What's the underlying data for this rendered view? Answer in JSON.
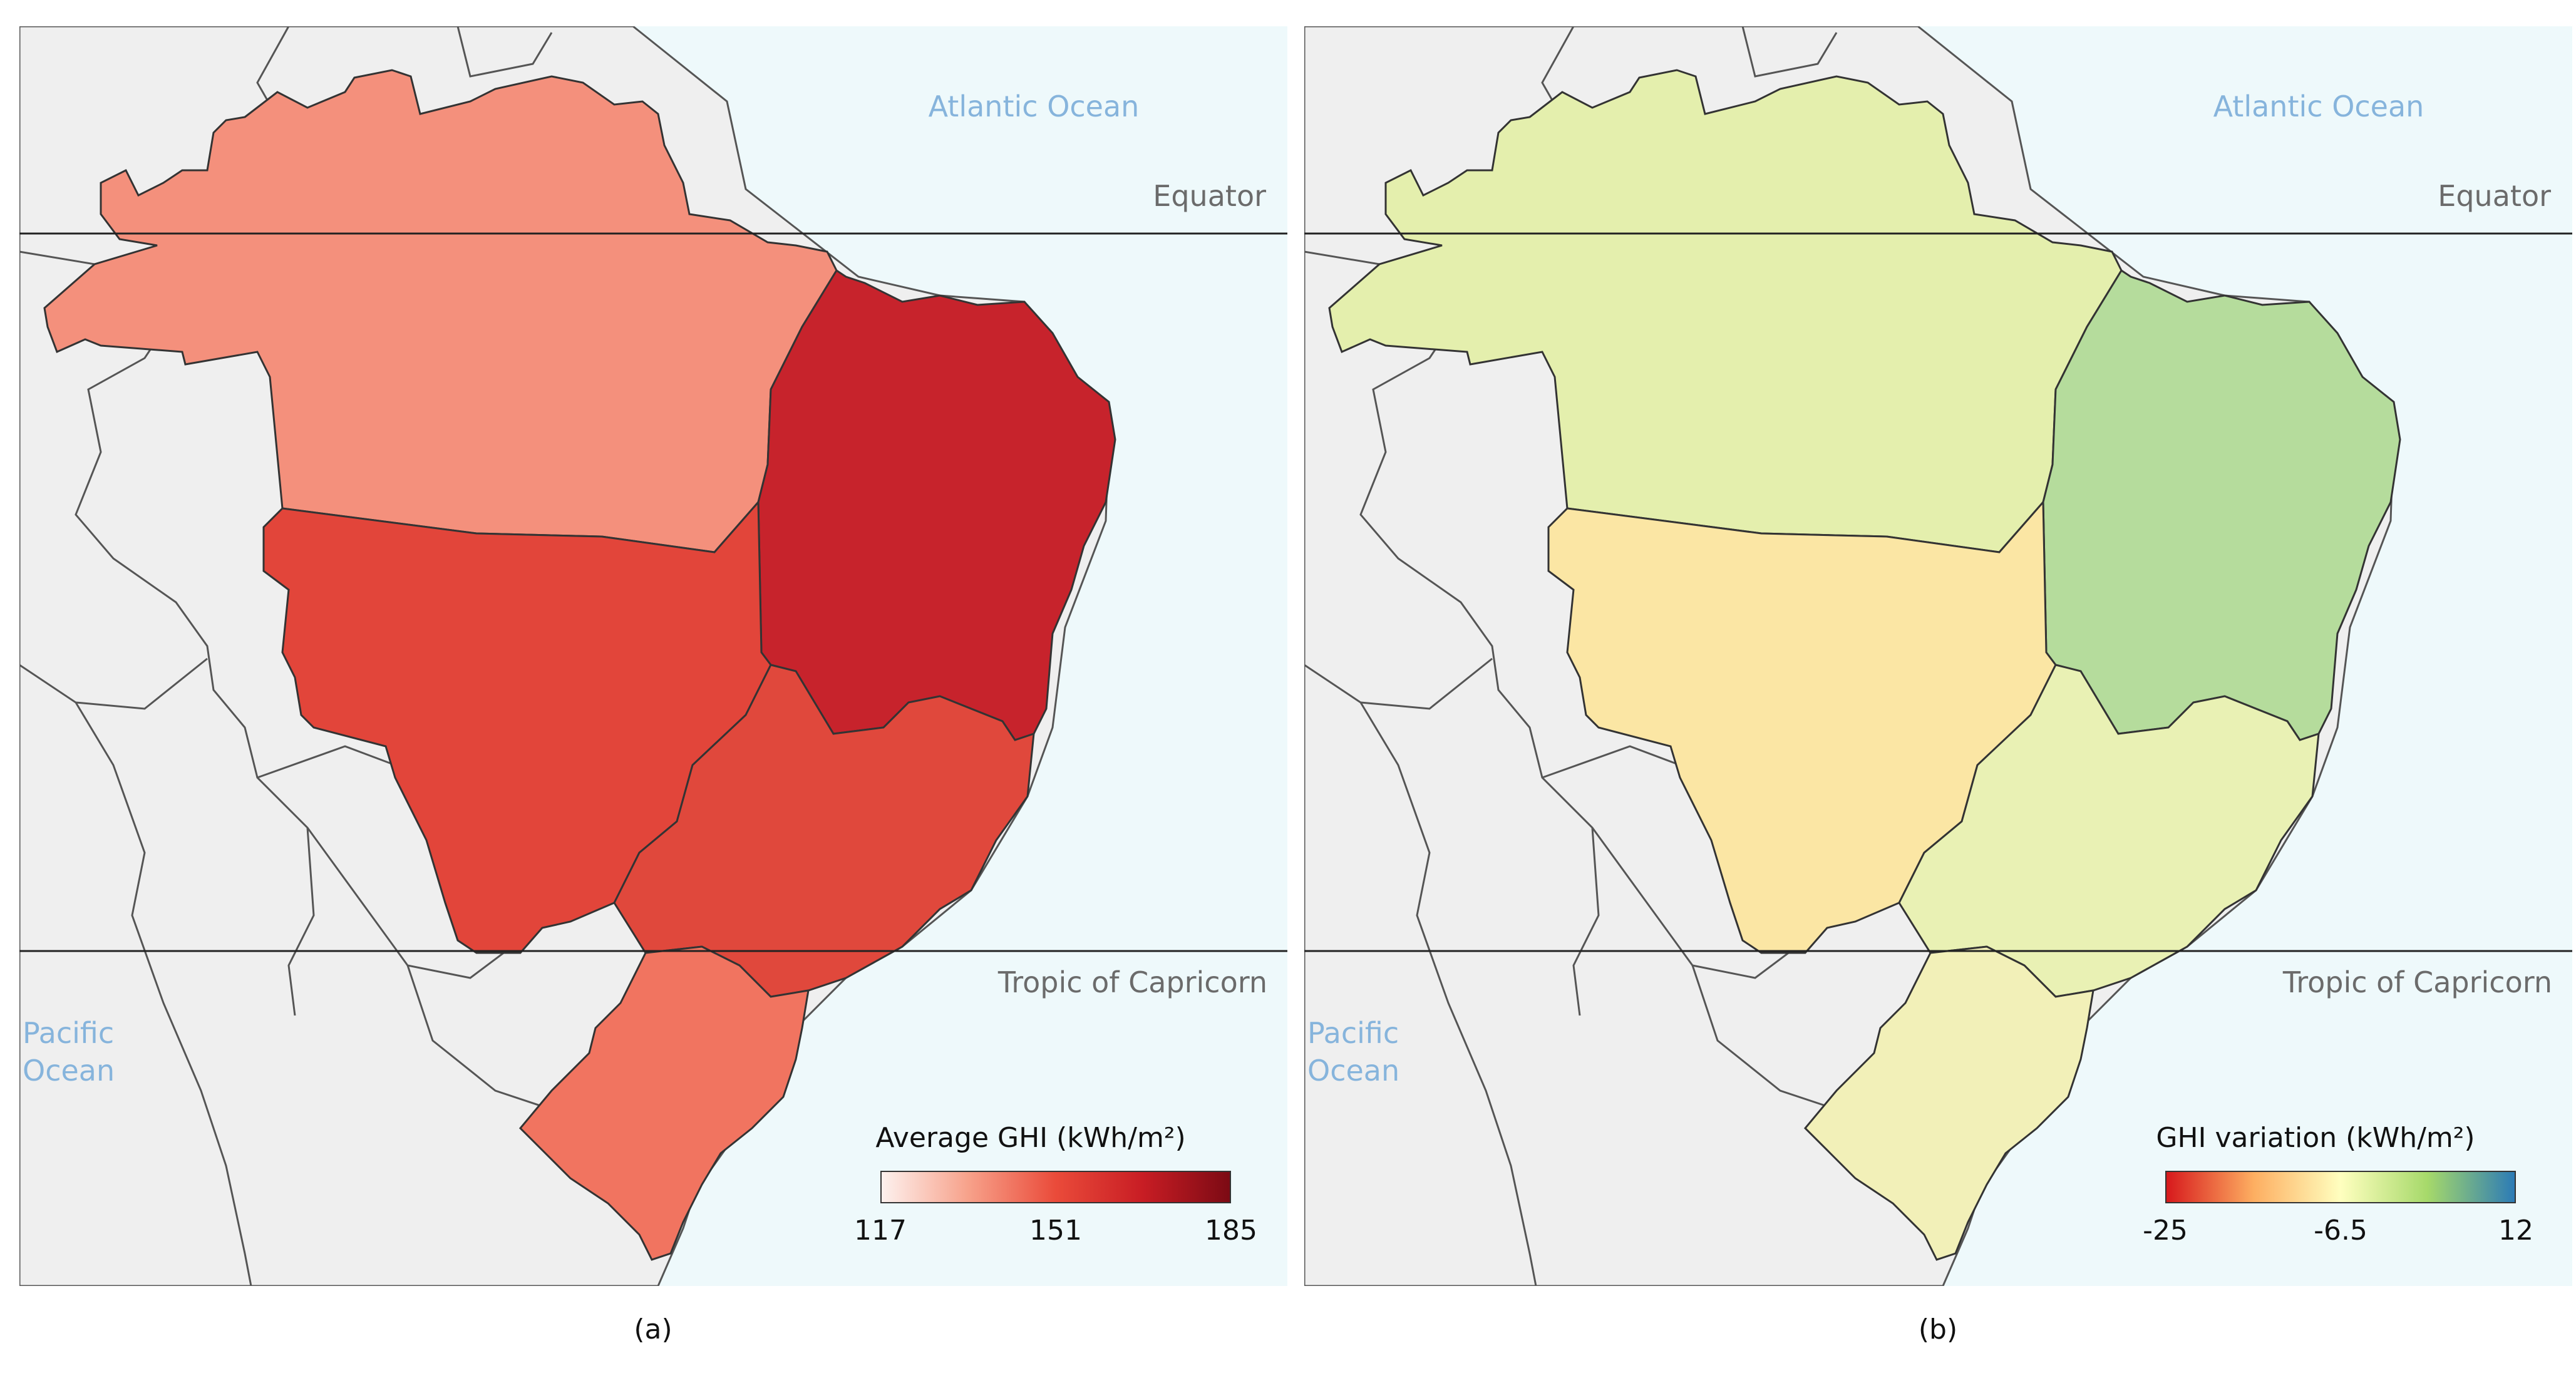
{
  "panels": [
    {
      "caption": "(a)",
      "ocean_atlantic": "Atlantic Ocean",
      "ocean_pacific": "Pacific Ocean",
      "equator_label": "Equator",
      "tropic_label": "Tropic of Capricorn",
      "legend": {
        "title": "Average GHI (kWh/m²)",
        "ticks": [
          "117",
          "151",
          "185"
        ],
        "gradient": [
          "#fdf1ee",
          "#f7a18a",
          "#ea4b3a",
          "#c81d24",
          "#7c0a14"
        ]
      },
      "colors": {
        "north": "#f4907c",
        "northeast": "#c7232c",
        "center_west": "#e2453a",
        "southeast": "#e0483c",
        "south": "#f17460"
      }
    },
    {
      "caption": "(b)",
      "ocean_atlantic": "Atlantic Ocean",
      "ocean_pacific": "Pacific Ocean",
      "equator_label": "Equator",
      "tropic_label": "Tropic of Capricorn",
      "legend": {
        "title": "GHI variation (kWh/m²)",
        "ticks": [
          "-25",
          "-6.5",
          "12"
        ],
        "gradient": [
          "#d7191c",
          "#fdae61",
          "#ffffbf",
          "#a6d96a",
          "#2c7bb6"
        ]
      },
      "colors": {
        "north": "#e4efad",
        "northeast": "#b5dc9c",
        "center_west": "#fbe6a4",
        "southeast": "#e9f1b4",
        "south": "#f2f0b8"
      }
    }
  ]
}
